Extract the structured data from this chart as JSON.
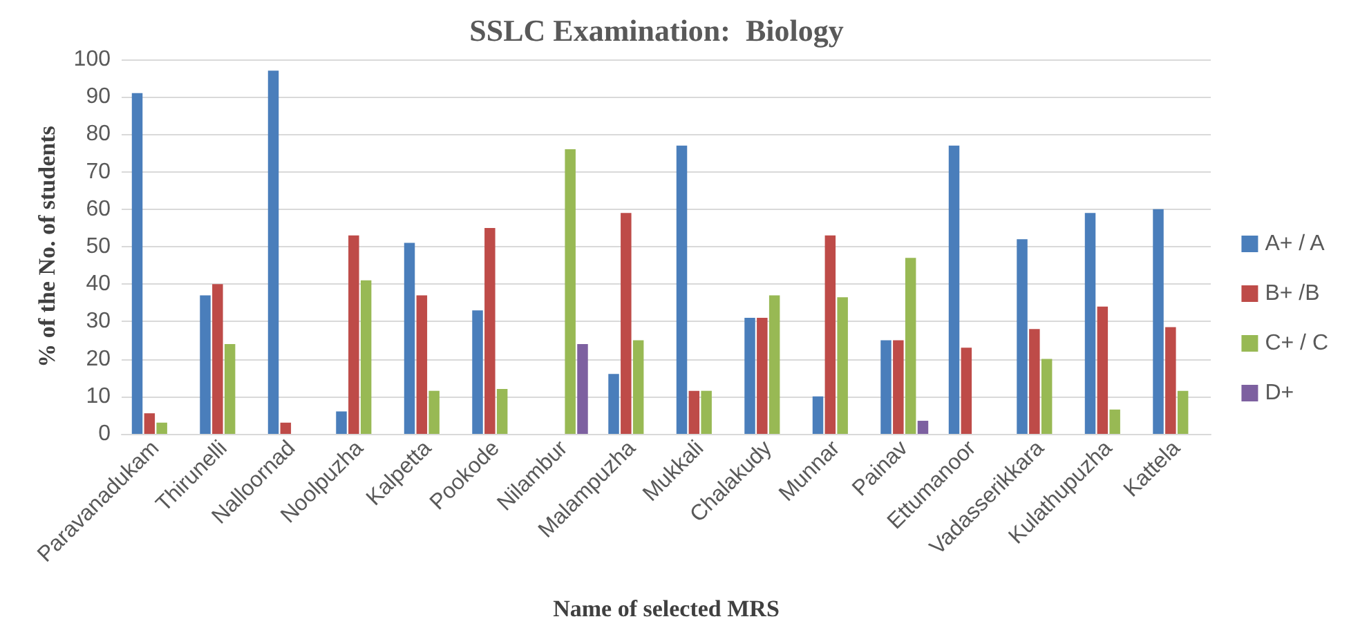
{
  "chart_data": {
    "type": "bar",
    "title": "SSLC Examination:  Biology",
    "xlabel": "Name of selected MRS",
    "ylabel": "% of the No. of students",
    "categories": [
      "Paravanadukam",
      "Thirunelli",
      "Nalloornad",
      "Noolpuzha",
      "Kalpetta",
      "Pookode",
      "Nilambur",
      "Malampuzha",
      "Mukkali",
      "Chalakudy",
      "Munnar",
      "Painav",
      "Ettumanoor",
      "Vadasserikkara",
      "Kulathupuzha",
      "Kattela"
    ],
    "series": [
      {
        "name": "A+ / A",
        "color": "#4a7ebb",
        "values": [
          91,
          37,
          97,
          6,
          51,
          33,
          null,
          16,
          77,
          31,
          10,
          25,
          77,
          52,
          59,
          60
        ]
      },
      {
        "name": "B+ /B",
        "color": "#be4b48",
        "values": [
          5.5,
          40,
          3,
          53,
          37,
          55,
          null,
          59,
          11.5,
          31,
          53,
          25,
          23,
          28,
          34,
          28.5
        ]
      },
      {
        "name": "C+ / C",
        "color": "#98b954",
        "values": [
          3,
          24,
          null,
          41,
          11.5,
          12,
          76,
          25,
          11.5,
          37,
          36.5,
          47,
          null,
          20,
          6.5,
          11.5
        ]
      },
      {
        "name": "D+",
        "color": "#7d60a0",
        "values": [
          null,
          null,
          null,
          null,
          null,
          null,
          24,
          null,
          null,
          null,
          null,
          3.5,
          null,
          null,
          null,
          null
        ]
      }
    ],
    "ylim": [
      0,
      100
    ],
    "yticks": [
      0,
      10,
      20,
      30,
      40,
      50,
      60,
      70,
      80,
      90,
      100
    ],
    "grid": "y",
    "legend": "right"
  }
}
